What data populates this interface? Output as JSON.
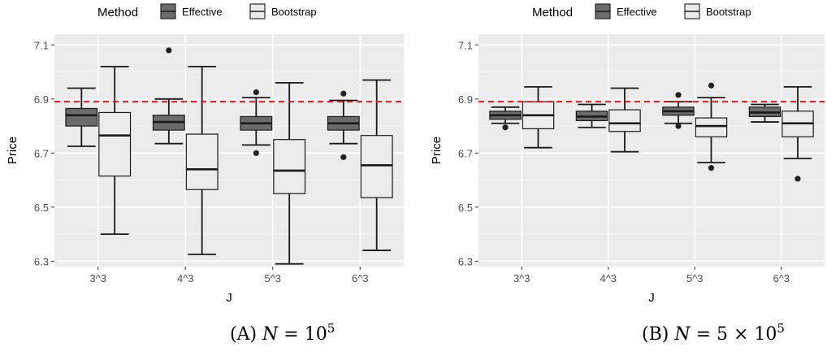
{
  "chart_data": [
    {
      "type": "box",
      "caption": "(A) N = 10^5",
      "caption_parts": {
        "prefix": "(A) ",
        "var": "N",
        "eq": " = 10",
        "exp": "5"
      },
      "legend": {
        "title": "Method",
        "entries": [
          "Effective",
          "Bootstrap"
        ],
        "position": "top"
      },
      "xlabel": "J",
      "ylabel": "Price",
      "categories": [
        "3^3",
        "4^3",
        "5^3",
        "6^3"
      ],
      "yticks": [
        "6.3",
        "6.5",
        "6.7",
        "6.9",
        "7.1"
      ],
      "ylim": [
        6.28,
        7.14
      ],
      "reference_line": 6.89,
      "series": [
        {
          "name": "Effective",
          "boxes": [
            {
              "min": 6.725,
              "q1": 6.8,
              "median": 6.84,
              "q3": 6.865,
              "max": 6.94,
              "outliers": []
            },
            {
              "min": 6.735,
              "q1": 6.785,
              "median": 6.815,
              "q3": 6.84,
              "max": 6.9,
              "outliers": [
                7.08
              ]
            },
            {
              "min": 6.73,
              "q1": 6.785,
              "median": 6.81,
              "q3": 6.835,
              "max": 6.905,
              "outliers": [
                6.925,
                6.7
              ]
            },
            {
              "min": 6.735,
              "q1": 6.785,
              "median": 6.81,
              "q3": 6.835,
              "max": 6.895,
              "outliers": [
                6.92,
                6.685
              ]
            }
          ]
        },
        {
          "name": "Bootstrap",
          "boxes": [
            {
              "min": 6.4,
              "q1": 6.615,
              "median": 6.765,
              "q3": 6.85,
              "max": 7.02,
              "outliers": []
            },
            {
              "min": 6.325,
              "q1": 6.565,
              "median": 6.64,
              "q3": 6.77,
              "max": 7.02,
              "outliers": []
            },
            {
              "min": 6.29,
              "q1": 6.55,
              "median": 6.635,
              "q3": 6.75,
              "max": 6.96,
              "outliers": []
            },
            {
              "min": 6.34,
              "q1": 6.535,
              "median": 6.655,
              "q3": 6.765,
              "max": 6.97,
              "outliers": []
            }
          ]
        }
      ]
    },
    {
      "type": "box",
      "caption": "(B) N = 5 × 10^5",
      "caption_parts": {
        "prefix": "(B) ",
        "var": "N",
        "eq": " = 5 × 10",
        "exp": "5"
      },
      "legend": {
        "title": "Method",
        "entries": [
          "Effective",
          "Bootstrap"
        ],
        "position": "top"
      },
      "xlabel": "J",
      "ylabel": "Price",
      "categories": [
        "3^3",
        "4^3",
        "5^3",
        "6^3"
      ],
      "yticks": [
        "6.3",
        "6.5",
        "6.7",
        "6.9",
        "7.1"
      ],
      "ylim": [
        6.28,
        7.14
      ],
      "reference_line": 6.89,
      "series": [
        {
          "name": "Effective",
          "boxes": [
            {
              "min": 6.81,
              "q1": 6.825,
              "median": 6.84,
              "q3": 6.855,
              "max": 6.87,
              "outliers": [
                6.795
              ]
            },
            {
              "min": 6.795,
              "q1": 6.82,
              "median": 6.835,
              "q3": 6.855,
              "max": 6.88,
              "outliers": []
            },
            {
              "min": 6.81,
              "q1": 6.84,
              "median": 6.855,
              "q3": 6.87,
              "max": 6.89,
              "outliers": [
                6.915,
                6.8
              ]
            },
            {
              "min": 6.815,
              "q1": 6.835,
              "median": 6.85,
              "q3": 6.87,
              "max": 6.88,
              "outliers": []
            }
          ]
        },
        {
          "name": "Bootstrap",
          "boxes": [
            {
              "min": 6.72,
              "q1": 6.79,
              "median": 6.84,
              "q3": 6.89,
              "max": 6.945,
              "outliers": []
            },
            {
              "min": 6.705,
              "q1": 6.78,
              "median": 6.81,
              "q3": 6.86,
              "max": 6.94,
              "outliers": []
            },
            {
              "min": 6.665,
              "q1": 6.76,
              "median": 6.8,
              "q3": 6.83,
              "max": 6.905,
              "outliers": [
                6.95,
                6.645
              ]
            },
            {
              "min": 6.68,
              "q1": 6.76,
              "median": 6.81,
              "q3": 6.855,
              "max": 6.945,
              "outliers": [
                6.605
              ]
            }
          ]
        }
      ]
    }
  ],
  "colors": {
    "panel_bg": "#ebebeb",
    "grid": "#ffffff",
    "effective_fill": "#6b6b6b",
    "bootstrap_fill": "#ebebeb",
    "stroke": "#1a1a1a",
    "reference_line": "#e41a1c",
    "axis_text": "#4d4d4d"
  }
}
